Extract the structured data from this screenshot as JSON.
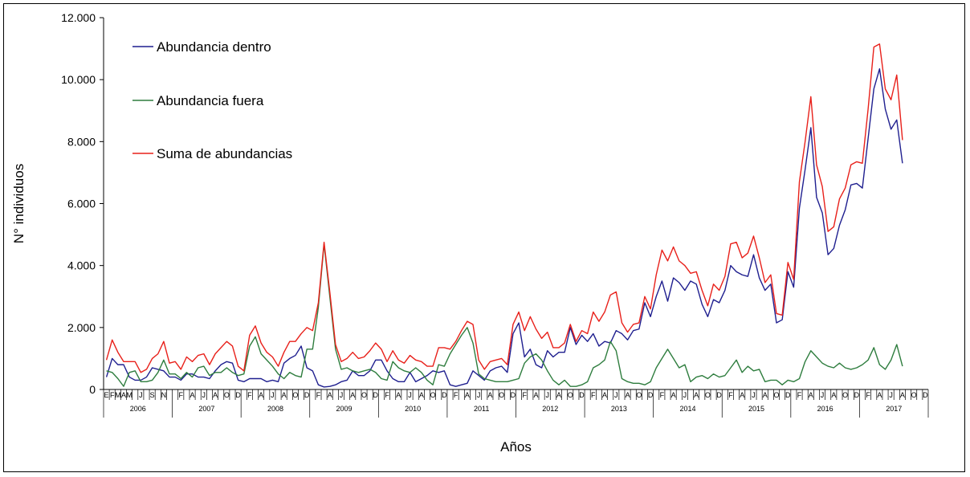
{
  "chart_data": {
    "type": "line",
    "title": "",
    "xlabel": "Años",
    "ylabel": "N° individuos",
    "ylim": [
      0,
      12000
    ],
    "yticks": [
      0,
      2000,
      4000,
      6000,
      8000,
      10000,
      12000
    ],
    "ytick_labels": [
      "0",
      "2.000",
      "4.000",
      "6.000",
      "8.000",
      "10.000",
      "12.000"
    ],
    "grid": false,
    "legend_position": "top-left",
    "years": [
      "2006",
      "2007",
      "2008",
      "2009",
      "2010",
      "2011",
      "2012",
      "2013",
      "2014",
      "2015",
      "2016",
      "2017"
    ],
    "month_labels": [
      "E",
      "F",
      "M",
      "A",
      "M",
      "J",
      "J",
      "A",
      "S",
      "O",
      "N",
      "D"
    ],
    "series": [
      {
        "name": "Abundancia dentro",
        "color": "#1f1f8f",
        "values": [
          400,
          1000,
          800,
          800,
          400,
          300,
          300,
          400,
          700,
          650,
          600,
          400,
          400,
          300,
          500,
          500,
          400,
          400,
          350,
          600,
          800,
          900,
          850,
          300,
          250,
          350,
          350,
          350,
          250,
          300,
          250,
          850,
          1000,
          1100,
          1400,
          700,
          600,
          150,
          80,
          100,
          150,
          250,
          300,
          600,
          450,
          450,
          600,
          950,
          950,
          600,
          350,
          250,
          250,
          550,
          250,
          350,
          450,
          600,
          550,
          600,
          150,
          100,
          150,
          200,
          600,
          450,
          300,
          600,
          700,
          750,
          550,
          1800,
          2150,
          1050,
          1300,
          800,
          700,
          1250,
          1050,
          1200,
          1200,
          2000,
          1450,
          1750,
          1550,
          1800,
          1400,
          1550,
          1500,
          1900,
          1800,
          1600,
          1900,
          1950,
          2800,
          2350,
          3000,
          3500,
          2850,
          3600,
          3450,
          3200,
          3500,
          3400,
          2750,
          2350,
          2900,
          2800,
          3200,
          4000,
          3800,
          3700,
          3650,
          4350,
          3600,
          3200,
          3400,
          2150,
          2250,
          3800,
          3300,
          5850,
          7100,
          8450,
          6200,
          5700,
          4350,
          4550,
          5300,
          5800,
          6600,
          6650,
          6500,
          8100,
          9700,
          10350,
          9050,
          8400,
          8700,
          7300
        ]
      },
      {
        "name": "Abundancia fuera",
        "color": "#2e7d3e",
        "values": [
          600,
          550,
          350,
          100,
          550,
          600,
          250,
          250,
          300,
          550,
          950,
          500,
          500,
          350,
          550,
          400,
          700,
          750,
          450,
          550,
          550,
          700,
          550,
          450,
          500,
          1400,
          1700,
          1150,
          950,
          750,
          500,
          350,
          550,
          450,
          400,
          1300,
          1300,
          2650,
          4700,
          3000,
          1300,
          650,
          700,
          600,
          550,
          600,
          650,
          550,
          350,
          300,
          900,
          700,
          600,
          550,
          700,
          550,
          300,
          150,
          800,
          750,
          1150,
          1450,
          1750,
          2000,
          1500,
          500,
          350,
          300,
          250,
          250,
          250,
          300,
          350,
          850,
          1050,
          1150,
          950,
          600,
          300,
          150,
          300,
          100,
          100,
          150,
          250,
          700,
          800,
          950,
          1550,
          1250,
          350,
          250,
          200,
          200,
          150,
          250,
          700,
          1000,
          1300,
          1000,
          700,
          800,
          250,
          400,
          450,
          350,
          500,
          400,
          450,
          700,
          950,
          550,
          750,
          600,
          650,
          250,
          300,
          300,
          150,
          300,
          250,
          350,
          900,
          1250,
          1050,
          850,
          750,
          700,
          850,
          700,
          650,
          700,
          800,
          950,
          1350,
          800,
          650,
          950,
          1450,
          750
        ]
      },
      {
        "name": "Suma de abundancias",
        "color": "#e8201a",
        "values": [
          950,
          1600,
          1200,
          900,
          900,
          900,
          550,
          650,
          1000,
          1150,
          1550,
          850,
          900,
          650,
          1050,
          900,
          1100,
          1150,
          800,
          1150,
          1350,
          1550,
          1400,
          750,
          600,
          1750,
          2050,
          1500,
          1200,
          1050,
          750,
          1200,
          1550,
          1550,
          1800,
          2000,
          1900,
          2800,
          4750,
          3150,
          1450,
          900,
          1000,
          1200,
          1000,
          1050,
          1250,
          1500,
          1300,
          900,
          1250,
          950,
          850,
          1100,
          950,
          900,
          750,
          750,
          1350,
          1350,
          1300,
          1550,
          1900,
          2200,
          2100,
          950,
          650,
          900,
          950,
          1000,
          800,
          2100,
          2500,
          1900,
          2350,
          1950,
          1650,
          1850,
          1350,
          1350,
          1500,
          2100,
          1550,
          1900,
          1800,
          2500,
          2200,
          2500,
          3050,
          3150,
          2150,
          1850,
          2100,
          2150,
          3000,
          2600,
          3700,
          4500,
          4150,
          4600,
          4150,
          4000,
          3750,
          3800,
          3200,
          2700,
          3400,
          3200,
          3650,
          4700,
          4750,
          4250,
          4400,
          4950,
          4250,
          3450,
          3700,
          2450,
          2400,
          4100,
          3550,
          6700,
          8000,
          9450,
          7250,
          6550,
          5100,
          5250,
          6150,
          6500,
          7250,
          7350,
          7300,
          9050,
          11050,
          11150,
          9700,
          9350,
          10150,
          8050
        ]
      }
    ]
  }
}
